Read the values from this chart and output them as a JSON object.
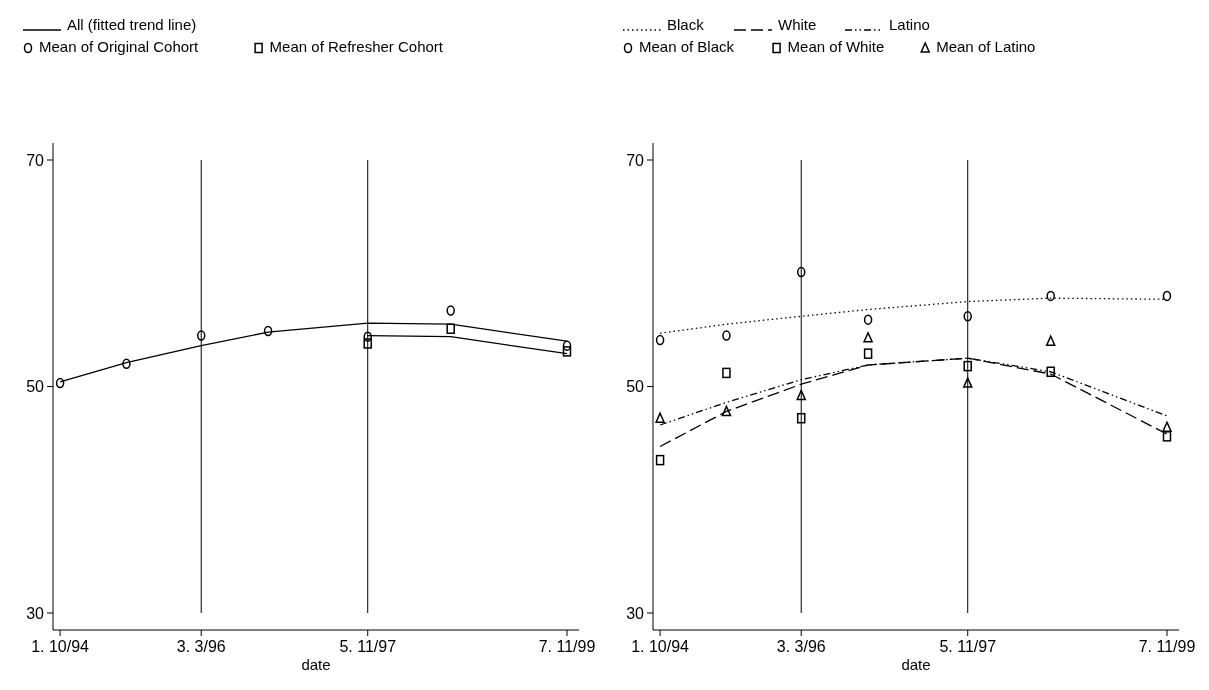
{
  "chart_data": [
    {
      "type": "line",
      "xlabel": "date",
      "xlim": [
        "1994-09-05",
        "1999-12-15"
      ],
      "xticks": [
        {
          "value": "1994-10",
          "label": "1. 10/94"
        },
        {
          "value": "1996-03",
          "label": "3. 3/96"
        },
        {
          "value": "1997-11",
          "label": "5. 11/97"
        },
        {
          "value": "1999-11",
          "label": "7. 11/99"
        }
      ],
      "ylim": [
        28.5,
        71.5
      ],
      "yticks": [
        30,
        50,
        70
      ],
      "legend": "top",
      "ref_lines": [
        {
          "axis": "x",
          "value": "1996-03",
          "color": "#000000"
        },
        {
          "axis": "x",
          "value": "1997-11",
          "color": "#000000"
        }
      ],
      "series": [
        {
          "type": "line",
          "name": "All (fitted trend line)",
          "color": "#000000",
          "line_style": "solid",
          "x": [
            "1994-10",
            "1995-06",
            "1996-03",
            "1996-11",
            "1997-11",
            "1998-09",
            "1999-11"
          ],
          "values": [
            50.4,
            52.1,
            53.6,
            54.8,
            55.6,
            55.5,
            54.0
          ]
        },
        {
          "type": "line",
          "color": "#000000",
          "line_style": "solid",
          "x": [
            "1997-11",
            "1998-09",
            "1999-11"
          ],
          "values": [
            54.5,
            54.4,
            52.9
          ]
        },
        {
          "type": "scatter",
          "name": "Mean of Original Cohort",
          "color": "#000000",
          "marker": "circle",
          "x": [
            "1994-10",
            "1995-06",
            "1996-03",
            "1996-11",
            "1997-11",
            "1998-09",
            "1999-11"
          ],
          "values": [
            50.3,
            52.0,
            54.5,
            54.9,
            54.4,
            56.7,
            53.6
          ]
        },
        {
          "type": "scatter",
          "name": "Mean of Refresher Cohort",
          "color": "#000000",
          "marker": "square",
          "x": [
            "1997-11",
            "1998-09",
            "1999-11"
          ],
          "values": [
            53.8,
            55.1,
            53.1
          ]
        }
      ]
    },
    {
      "type": "line",
      "xlabel": "date",
      "xlim": [
        "1994-09-05",
        "1999-12-15"
      ],
      "xticks": [
        {
          "value": "1994-10",
          "label": "1. 10/94"
        },
        {
          "value": "1996-03",
          "label": "3. 3/96"
        },
        {
          "value": "1997-11",
          "label": "5. 11/97"
        },
        {
          "value": "1999-11",
          "label": "7. 11/99"
        }
      ],
      "ylim": [
        28.5,
        71.5
      ],
      "yticks": [
        30,
        50,
        70
      ],
      "legend": "top",
      "ref_lines": [
        {
          "axis": "x",
          "value": "1996-03",
          "color": "#000000"
        },
        {
          "axis": "x",
          "value": "1997-11",
          "color": "#000000"
        }
      ],
      "series": [
        {
          "type": "line",
          "name": "Black",
          "color": "#000000",
          "line_style": "dotted",
          "x": [
            "1994-10",
            "1995-06",
            "1996-03",
            "1996-11",
            "1997-11",
            "1998-09",
            "1999-11"
          ],
          "values": [
            54.7,
            55.5,
            56.2,
            56.8,
            57.5,
            57.8,
            57.7
          ]
        },
        {
          "type": "line",
          "name": "White",
          "color": "#000000",
          "line_style": "dashed",
          "x": [
            "1994-10",
            "1995-06",
            "1996-03",
            "1996-11",
            "1997-11",
            "1998-09",
            "1999-11"
          ],
          "values": [
            44.7,
            47.8,
            50.2,
            51.9,
            52.5,
            51.1,
            45.8
          ]
        },
        {
          "type": "line",
          "name": "Latino",
          "color": "#000000",
          "line_style": "dashdot",
          "x": [
            "1994-10",
            "1995-06",
            "1996-03",
            "1996-11",
            "1997-11",
            "1998-09",
            "1999-11"
          ],
          "values": [
            46.6,
            48.6,
            50.6,
            51.9,
            52.5,
            51.3,
            47.4
          ]
        },
        {
          "type": "scatter",
          "name": "Mean of Black",
          "color": "#000000",
          "marker": "circle",
          "x": [
            "1994-10",
            "1995-06",
            "1996-03",
            "1996-11",
            "1997-11",
            "1998-09",
            "1999-11"
          ],
          "values": [
            54.1,
            54.5,
            60.1,
            55.9,
            56.2,
            58.0,
            58.0
          ]
        },
        {
          "type": "scatter",
          "name": "Mean of White",
          "color": "#000000",
          "marker": "square",
          "x": [
            "1994-10",
            "1995-06",
            "1996-03",
            "1996-11",
            "1997-11",
            "1998-09",
            "1999-11"
          ],
          "values": [
            43.5,
            51.2,
            47.2,
            52.9,
            51.8,
            51.3,
            45.6
          ]
        },
        {
          "type": "scatter",
          "name": "Mean of Latino",
          "color": "#000000",
          "marker": "triangle",
          "x": [
            "1994-10",
            "1995-06",
            "1996-03",
            "1996-11",
            "1997-11",
            "1998-09",
            "1999-11"
          ],
          "values": [
            47.2,
            47.8,
            49.2,
            54.3,
            50.3,
            54.0,
            46.4
          ]
        }
      ]
    }
  ]
}
